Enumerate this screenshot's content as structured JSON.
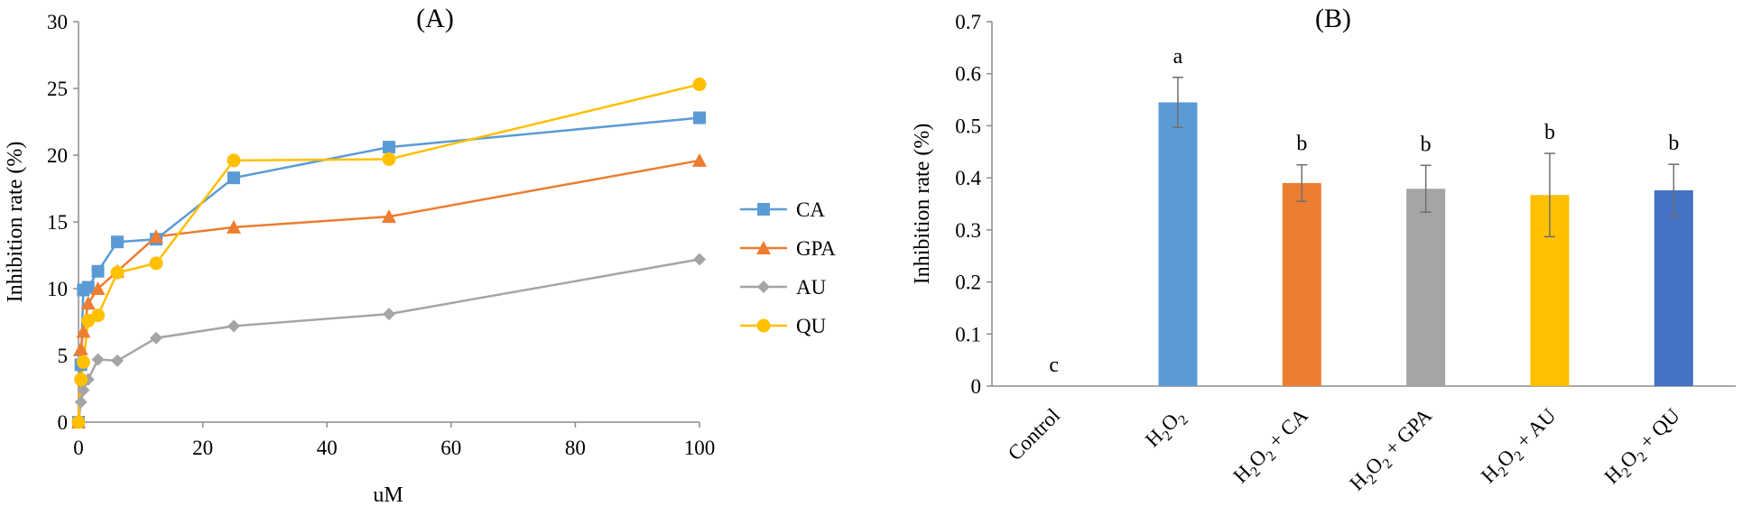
{
  "chart_data": [
    {
      "type": "line",
      "title": "(A)",
      "xlabel": "uM",
      "ylabel": "Inhibition rate (%)",
      "xlim": [
        0,
        100
      ],
      "ylim": [
        0,
        30
      ],
      "xticks": [
        "0",
        "20",
        "40",
        "60",
        "80",
        "100"
      ],
      "yticks": [
        "0",
        "5",
        "10",
        "15",
        "20",
        "25",
        "30"
      ],
      "legend_position": "right",
      "series": [
        {
          "name": "CA",
          "color": "#5b9bd5",
          "marker": "square",
          "x": [
            0,
            0.39,
            0.78,
            1.56,
            3.13,
            6.25,
            12.5,
            25,
            50,
            100
          ],
          "y": [
            0,
            4.3,
            9.9,
            10.1,
            11.3,
            13.5,
            13.7,
            18.3,
            20.6,
            22.8
          ]
        },
        {
          "name": "GPA",
          "color": "#ed7d31",
          "marker": "triangle",
          "x": [
            0,
            0.39,
            0.78,
            1.56,
            3.13,
            6.25,
            12.5,
            25,
            50,
            100
          ],
          "y": [
            0,
            5.5,
            6.8,
            8.9,
            10.0,
            11.3,
            13.9,
            14.6,
            15.4,
            19.6
          ]
        },
        {
          "name": "AU",
          "color": "#a5a5a5",
          "marker": "diamond",
          "x": [
            0,
            0.39,
            0.78,
            1.56,
            3.13,
            6.25,
            12.5,
            25,
            50,
            100
          ],
          "y": [
            0,
            1.5,
            2.4,
            3.2,
            4.7,
            4.6,
            6.3,
            7.2,
            8.1,
            12.2
          ]
        },
        {
          "name": "QU",
          "color": "#ffc000",
          "marker": "circle",
          "x": [
            0,
            0.39,
            0.78,
            1.56,
            3.13,
            6.25,
            12.5,
            25,
            50,
            100
          ],
          "y": [
            0,
            3.2,
            4.5,
            7.6,
            8.0,
            11.2,
            11.9,
            19.6,
            19.7,
            25.3
          ]
        }
      ]
    },
    {
      "type": "bar",
      "title": "(B)",
      "xlabel": "",
      "ylabel": "Inhibition rate (%)",
      "ylim": [
        0,
        0.7
      ],
      "yticks": [
        "0",
        "0.1",
        "0.2",
        "0.3",
        "0.4",
        "0.5",
        "0.6",
        "0.7"
      ],
      "categories": [
        {
          "base": "Control"
        },
        {
          "base": "H",
          "sub1": "2",
          "mid": "O",
          "sub2": "2",
          "suffix": ""
        },
        {
          "base": "H",
          "sub1": "2",
          "mid": "O",
          "sub2": "2",
          "suffix": " + CA"
        },
        {
          "base": "H",
          "sub1": "2",
          "mid": "O",
          "sub2": "2",
          "suffix": " + GPA"
        },
        {
          "base": "H",
          "sub1": "2",
          "mid": "O",
          "sub2": "2",
          "suffix": " + AU"
        },
        {
          "base": "H",
          "sub1": "2",
          "mid": "O",
          "sub2": "2",
          "suffix": " + QU"
        }
      ],
      "values": [
        0,
        0.545,
        0.39,
        0.379,
        0.367,
        0.376
      ],
      "errors": [
        0,
        0.048,
        0.035,
        0.045,
        0.08,
        0.05
      ],
      "letters": [
        "c",
        "a",
        "b",
        "b",
        "b",
        "b"
      ],
      "colors": [
        "#5b9bd5",
        "#5b9bd5",
        "#ed7d31",
        "#a5a5a5",
        "#ffc000",
        "#4472c4"
      ]
    }
  ]
}
